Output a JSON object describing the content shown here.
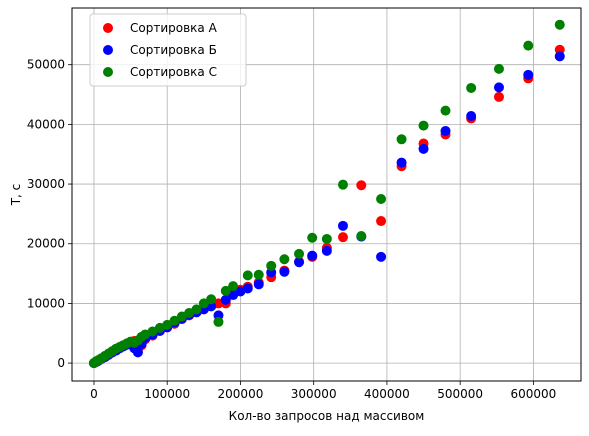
{
  "chart_data": {
    "type": "scatter",
    "title": "",
    "xlabel": "Кол-во запросов над массивом",
    "ylabel": "T, с",
    "xlim": [
      -30000,
      665000
    ],
    "ylim": [
      -3000,
      59500
    ],
    "xticks": [
      0,
      100000,
      200000,
      300000,
      400000,
      500000,
      600000
    ],
    "yticks": [
      0,
      10000,
      20000,
      30000,
      40000,
      50000
    ],
    "grid": true,
    "legend_position": "top-left",
    "series": [
      {
        "name": "Сортировка А",
        "color": "#ff0000",
        "points": [
          [
            0,
            0
          ],
          [
            3000,
            200
          ],
          [
            6000,
            400
          ],
          [
            10000,
            700
          ],
          [
            15000,
            1000
          ],
          [
            20000,
            1400
          ],
          [
            25000,
            1800
          ],
          [
            30000,
            2100
          ],
          [
            35000,
            2500
          ],
          [
            40000,
            2800
          ],
          [
            45000,
            3100
          ],
          [
            50000,
            3500
          ],
          [
            55000,
            3700
          ],
          [
            60000,
            2000
          ],
          [
            65000,
            3000
          ],
          [
            70000,
            4000
          ],
          [
            80000,
            4600
          ],
          [
            90000,
            5400
          ],
          [
            100000,
            6000
          ],
          [
            110000,
            6600
          ],
          [
            120000,
            7400
          ],
          [
            130000,
            8000
          ],
          [
            140000,
            8800
          ],
          [
            150000,
            9200
          ],
          [
            160000,
            9800
          ],
          [
            170000,
            10000
          ],
          [
            180000,
            10000
          ],
          [
            190000,
            11800
          ],
          [
            200000,
            12300
          ],
          [
            210000,
            12800
          ],
          [
            225000,
            13500
          ],
          [
            242000,
            14400
          ],
          [
            260000,
            15500
          ],
          [
            280000,
            17000
          ],
          [
            298000,
            17800
          ],
          [
            318000,
            19300
          ],
          [
            340000,
            21100
          ],
          [
            365000,
            29800
          ],
          [
            392000,
            23800
          ],
          [
            420000,
            33000
          ],
          [
            450000,
            36800
          ],
          [
            480000,
            38300
          ],
          [
            515000,
            41000
          ],
          [
            553000,
            44600
          ],
          [
            593000,
            47700
          ],
          [
            636000,
            52500
          ]
        ]
      },
      {
        "name": "Сортировка Б",
        "color": "#0000ff",
        "points": [
          [
            0,
            0
          ],
          [
            3000,
            200
          ],
          [
            6000,
            400
          ],
          [
            10000,
            700
          ],
          [
            15000,
            1000
          ],
          [
            20000,
            1400
          ],
          [
            25000,
            1800
          ],
          [
            30000,
            2100
          ],
          [
            35000,
            2500
          ],
          [
            40000,
            2800
          ],
          [
            45000,
            3100
          ],
          [
            50000,
            3400
          ],
          [
            55000,
            2500
          ],
          [
            60000,
            1800
          ],
          [
            65000,
            3200
          ],
          [
            70000,
            4200
          ],
          [
            80000,
            4800
          ],
          [
            90000,
            5400
          ],
          [
            100000,
            6000
          ],
          [
            110000,
            6800
          ],
          [
            120000,
            7400
          ],
          [
            130000,
            8100
          ],
          [
            140000,
            8500
          ],
          [
            150000,
            9000
          ],
          [
            160000,
            9500
          ],
          [
            170000,
            8000
          ],
          [
            180000,
            10600
          ],
          [
            190000,
            11400
          ],
          [
            200000,
            12000
          ],
          [
            210000,
            12500
          ],
          [
            225000,
            13200
          ],
          [
            242000,
            15200
          ],
          [
            260000,
            15300
          ],
          [
            280000,
            16900
          ],
          [
            298000,
            18000
          ],
          [
            318000,
            18800
          ],
          [
            340000,
            23000
          ],
          [
            365000,
            21200
          ],
          [
            392000,
            17800
          ],
          [
            420000,
            33600
          ],
          [
            450000,
            35900
          ],
          [
            480000,
            38900
          ],
          [
            515000,
            41400
          ],
          [
            553000,
            46200
          ],
          [
            593000,
            48300
          ],
          [
            636000,
            51400
          ]
        ]
      },
      {
        "name": "Сортировка С",
        "color": "#008000",
        "points": [
          [
            0,
            0
          ],
          [
            3000,
            300
          ],
          [
            6000,
            500
          ],
          [
            10000,
            800
          ],
          [
            15000,
            1200
          ],
          [
            20000,
            1600
          ],
          [
            25000,
            2000
          ],
          [
            30000,
            2400
          ],
          [
            35000,
            2700
          ],
          [
            40000,
            3000
          ],
          [
            45000,
            3300
          ],
          [
            50000,
            3600
          ],
          [
            55000,
            3400
          ],
          [
            60000,
            3800
          ],
          [
            65000,
            4400
          ],
          [
            70000,
            4800
          ],
          [
            80000,
            5300
          ],
          [
            90000,
            5900
          ],
          [
            100000,
            6400
          ],
          [
            110000,
            7100
          ],
          [
            120000,
            7800
          ],
          [
            130000,
            8400
          ],
          [
            140000,
            9000
          ],
          [
            150000,
            10000
          ],
          [
            160000,
            10700
          ],
          [
            170000,
            6900
          ],
          [
            180000,
            12100
          ],
          [
            190000,
            12900
          ],
          [
            210000,
            14700
          ],
          [
            225000,
            14800
          ],
          [
            242000,
            16300
          ],
          [
            260000,
            17400
          ],
          [
            280000,
            18300
          ],
          [
            298000,
            21000
          ],
          [
            318000,
            20800
          ],
          [
            340000,
            29900
          ],
          [
            365000,
            21300
          ],
          [
            392000,
            27500
          ],
          [
            420000,
            37500
          ],
          [
            450000,
            39800
          ],
          [
            480000,
            42300
          ],
          [
            515000,
            46100
          ],
          [
            553000,
            49300
          ],
          [
            593000,
            53200
          ],
          [
            636000,
            56700
          ]
        ]
      }
    ]
  }
}
